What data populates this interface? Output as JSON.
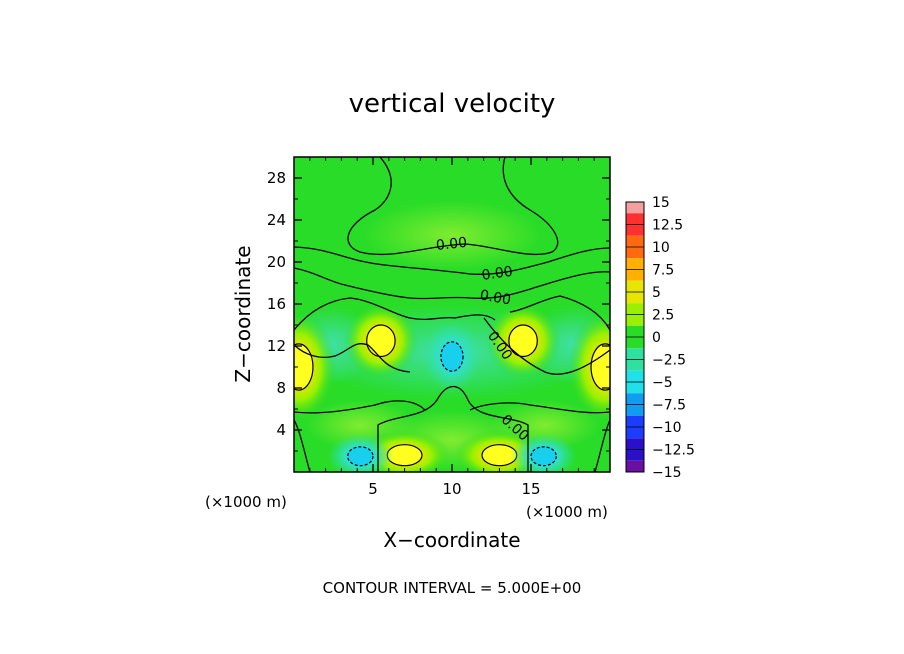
{
  "chart_data": {
    "type": "heatmap",
    "title": "vertical velocity",
    "xlabel": "X−coordinate",
    "ylabel": "Z−coordinate",
    "x_unit": "(×1000 m)",
    "y_unit": "(×1000 m)",
    "xlim": [
      0,
      20
    ],
    "ylim": [
      0,
      30
    ],
    "x_ticks": [
      5,
      10,
      15
    ],
    "y_ticks": [
      4,
      8,
      12,
      16,
      20,
      24,
      28
    ],
    "colorbar": {
      "labels": [
        "15",
        "12.5",
        "10",
        "7.5",
        "5",
        "2.5",
        "0",
        "−2.5",
        "−5",
        "−7.5",
        "−10",
        "−12.5",
        "−15"
      ],
      "colors": [
        "#f4a0a0",
        "#ff3030",
        "#ff6a10",
        "#ffb000",
        "#e6e600",
        "#9af000",
        "#28dc28",
        "#30e0a0",
        "#20e0e8",
        "#109cf0",
        "#1c3cff",
        "#2a10c8",
        "#6a10a0"
      ]
    },
    "contour_interval": "CONTOUR INTERVAL = 5.000E+00",
    "contour_labels": [
      {
        "text": "0.00",
        "x": 10.0,
        "z": 21.3,
        "rotate": -6
      },
      {
        "text": "0.00",
        "x": 12.9,
        "z": 18.5,
        "rotate": -8
      },
      {
        "text": "0.00",
        "x": 12.7,
        "z": 16.2,
        "rotate": 10
      },
      {
        "text": "0.00",
        "x": 12.8,
        "z": 11.8,
        "rotate": 55
      },
      {
        "text": "0.00",
        "x": 13.8,
        "z": 3.9,
        "rotate": 42
      }
    ],
    "regions": [
      {
        "kind": "positive",
        "x": 0.3,
        "z": 10,
        "rx": 0.9,
        "rz": 2.2,
        "value": 5
      },
      {
        "kind": "positive",
        "x": 19.7,
        "z": 10,
        "rx": 0.9,
        "rz": 2.2,
        "value": 5
      },
      {
        "kind": "positive",
        "x": 5.5,
        "z": 12.5,
        "rx": 0.9,
        "rz": 1.5,
        "value": 5
      },
      {
        "kind": "positive",
        "x": 14.5,
        "z": 12.5,
        "rx": 0.9,
        "rz": 1.5,
        "value": 5
      },
      {
        "kind": "positive",
        "x": 7.0,
        "z": 1.6,
        "rx": 1.1,
        "rz": 1.0,
        "value": 5
      },
      {
        "kind": "positive",
        "x": 13.0,
        "z": 1.6,
        "rx": 1.1,
        "rz": 1.0,
        "value": 5
      },
      {
        "kind": "negative",
        "x": 10.0,
        "z": 11.0,
        "rx": 0.7,
        "rz": 1.4,
        "value": -5
      },
      {
        "kind": "negative",
        "x": 4.2,
        "z": 1.5,
        "rx": 0.8,
        "rz": 0.9,
        "value": -5
      },
      {
        "kind": "negative",
        "x": 15.8,
        "z": 1.5,
        "rx": 0.8,
        "rz": 0.9,
        "value": -5
      }
    ]
  }
}
